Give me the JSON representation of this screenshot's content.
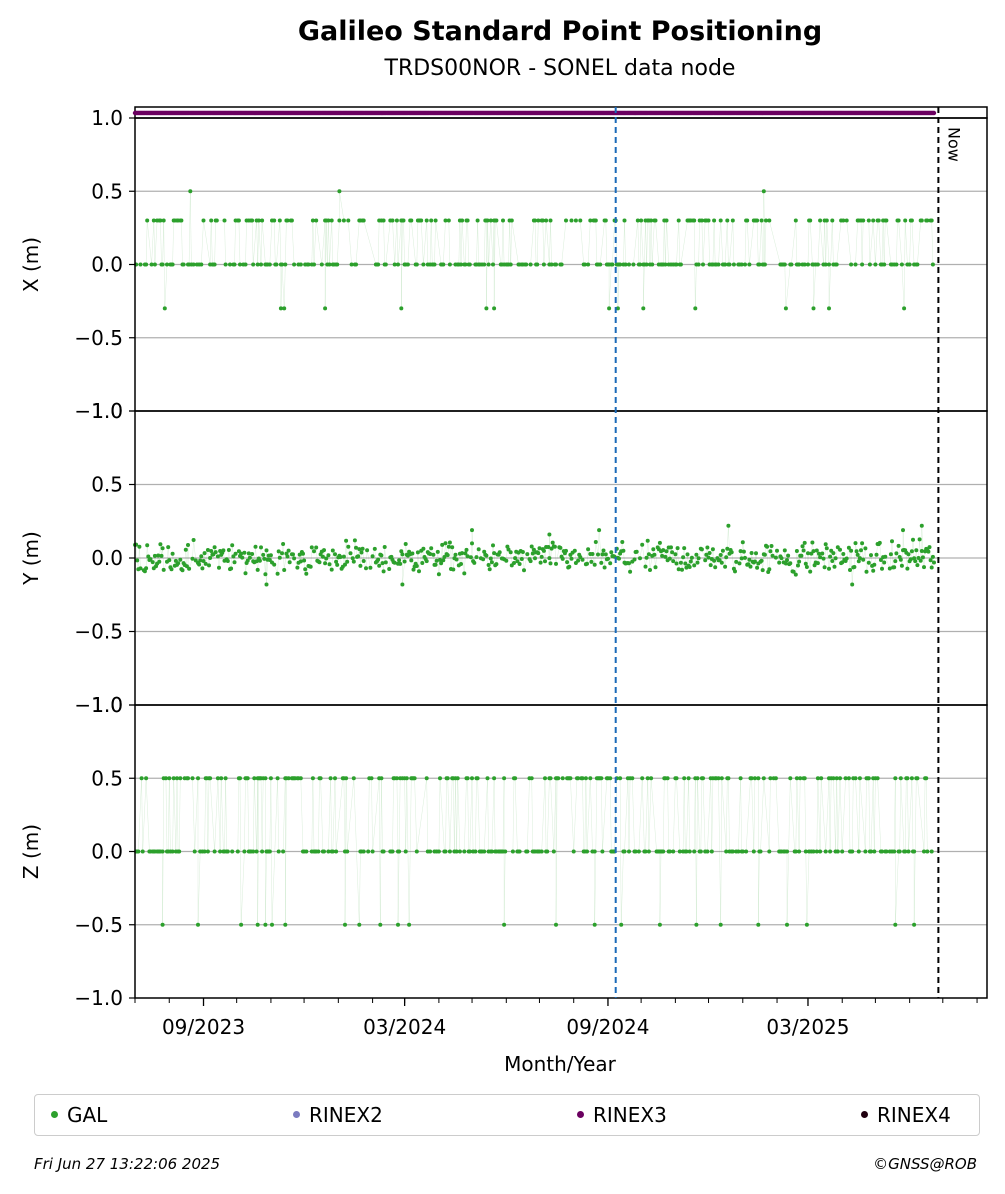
{
  "title": "Galileo Standard Point Positioning",
  "subtitle": "TRDS00NOR - SONEL data node",
  "footer": {
    "timestamp": "Fri Jun 27 13:22:06 2025",
    "credit": "©GNSS@ROB"
  },
  "colors": {
    "gal": "#2ca02c",
    "rinex2": "#7b7bc0",
    "rinex3": "#6b0060",
    "rinex4": "#200010",
    "event_line": "#1a6ab8",
    "now_line": "#000000",
    "grid": "#b0b0b0"
  },
  "chart_data": {
    "type": "scatter",
    "xlabel": "Month/Year",
    "x_range": [
      "2023-07-01",
      "2025-08-10"
    ],
    "x_ticks": [
      {
        "date": "2023-09-01",
        "label": "09/2023"
      },
      {
        "date": "2024-03-01",
        "label": "03/2024"
      },
      {
        "date": "2024-09-01",
        "label": "09/2024"
      },
      {
        "date": "2025-03-01",
        "label": "03/2025"
      }
    ],
    "event_line_date": "2024-09-08",
    "now_date": "2025-06-27",
    "now_label": "Now",
    "data_start": "2023-07-01",
    "data_end": "2025-06-23",
    "rinex_flag_value": 1.04,
    "panels": [
      {
        "ylabel": "X (m)",
        "ylim": [
          -1.0,
          1.0
        ],
        "yticks": [
          -1.0,
          -0.5,
          0.0,
          0.5,
          1.0
        ],
        "ytick_labels": [
          "−1.0",
          "−0.5",
          "0.0",
          "0.5",
          "1.0"
        ],
        "levels": [
          0.0,
          0.3
        ],
        "outliers": [
          {
            "date": "2023-07-28",
            "value": -0.3
          },
          {
            "date": "2023-08-20",
            "value": 0.5
          },
          {
            "date": "2023-11-10",
            "value": -0.3
          },
          {
            "date": "2023-11-13",
            "value": -0.3
          },
          {
            "date": "2023-12-20",
            "value": -0.3
          },
          {
            "date": "2024-01-02",
            "value": 0.5
          },
          {
            "date": "2024-02-27",
            "value": -0.3
          },
          {
            "date": "2024-05-14",
            "value": -0.3
          },
          {
            "date": "2024-05-21",
            "value": -0.3
          },
          {
            "date": "2024-09-02",
            "value": -0.3
          },
          {
            "date": "2024-09-10",
            "value": -0.3
          },
          {
            "date": "2024-10-03",
            "value": -0.3
          },
          {
            "date": "2024-11-19",
            "value": -0.3
          },
          {
            "date": "2025-01-20",
            "value": 0.5
          },
          {
            "date": "2025-02-09",
            "value": -0.3
          },
          {
            "date": "2025-03-06",
            "value": -0.3
          },
          {
            "date": "2025-03-20",
            "value": -0.3
          },
          {
            "date": "2025-05-27",
            "value": -0.3
          }
        ]
      },
      {
        "ylabel": "Y (m)",
        "ylim": [
          -1.0,
          1.0
        ],
        "yticks": [
          -1.0,
          -0.5,
          0.0,
          0.5,
          1.0
        ],
        "ytick_labels": [
          "−1.0",
          "−0.5",
          "0.0",
          "0.5",
          "1.0"
        ],
        "noise_amplitude": 0.17,
        "outliers": [
          {
            "date": "2024-05-01",
            "value": 0.19
          },
          {
            "date": "2024-07-10",
            "value": 0.16
          },
          {
            "date": "2024-08-24",
            "value": 0.19
          },
          {
            "date": "2024-12-19",
            "value": 0.22
          },
          {
            "date": "2025-06-12",
            "value": 0.22
          },
          {
            "date": "2025-05-26",
            "value": 0.19
          },
          {
            "date": "2023-10-28",
            "value": -0.18
          },
          {
            "date": "2024-02-28",
            "value": -0.18
          },
          {
            "date": "2025-04-10",
            "value": -0.18
          }
        ]
      },
      {
        "ylabel": "Z (m)",
        "ylim": [
          -1.0,
          1.0
        ],
        "yticks": [
          -1.0,
          -0.5,
          0.0,
          0.5,
          1.0
        ],
        "ytick_labels": [
          "−1.0",
          "−0.5",
          "0.0",
          "0.5",
          "1.0"
        ],
        "levels": [
          0.0,
          0.5
        ],
        "outliers": [
          {
            "date": "2023-07-26",
            "value": -0.5
          },
          {
            "date": "2023-08-27",
            "value": -0.5
          },
          {
            "date": "2023-10-05",
            "value": -0.5
          },
          {
            "date": "2023-10-20",
            "value": -0.5
          },
          {
            "date": "2023-10-27",
            "value": -0.5
          },
          {
            "date": "2023-11-02",
            "value": -0.5
          },
          {
            "date": "2023-11-14",
            "value": -0.5
          },
          {
            "date": "2024-01-07",
            "value": -0.5
          },
          {
            "date": "2024-01-20",
            "value": -0.5
          },
          {
            "date": "2024-02-08",
            "value": -0.5
          },
          {
            "date": "2024-02-24",
            "value": -0.5
          },
          {
            "date": "2024-03-05",
            "value": -0.5
          },
          {
            "date": "2024-05-30",
            "value": -0.5
          },
          {
            "date": "2024-07-16",
            "value": -0.5
          },
          {
            "date": "2024-08-20",
            "value": -0.5
          },
          {
            "date": "2024-09-13",
            "value": -0.5
          },
          {
            "date": "2024-10-18",
            "value": -0.5
          },
          {
            "date": "2024-11-20",
            "value": -0.5
          },
          {
            "date": "2024-12-12",
            "value": -0.5
          },
          {
            "date": "2025-01-15",
            "value": -0.5
          },
          {
            "date": "2025-02-10",
            "value": -0.5
          },
          {
            "date": "2025-02-28",
            "value": -0.5
          },
          {
            "date": "2025-05-19",
            "value": -0.5
          },
          {
            "date": "2025-06-05",
            "value": -0.5
          }
        ]
      }
    ],
    "legend": [
      {
        "label": "GAL",
        "color": "#2ca02c"
      },
      {
        "label": "RINEX2",
        "color": "#7b7bc0"
      },
      {
        "label": "RINEX3",
        "color": "#6b0060"
      },
      {
        "label": "RINEX4",
        "color": "#200010"
      }
    ],
    "legend_placement": "below"
  }
}
